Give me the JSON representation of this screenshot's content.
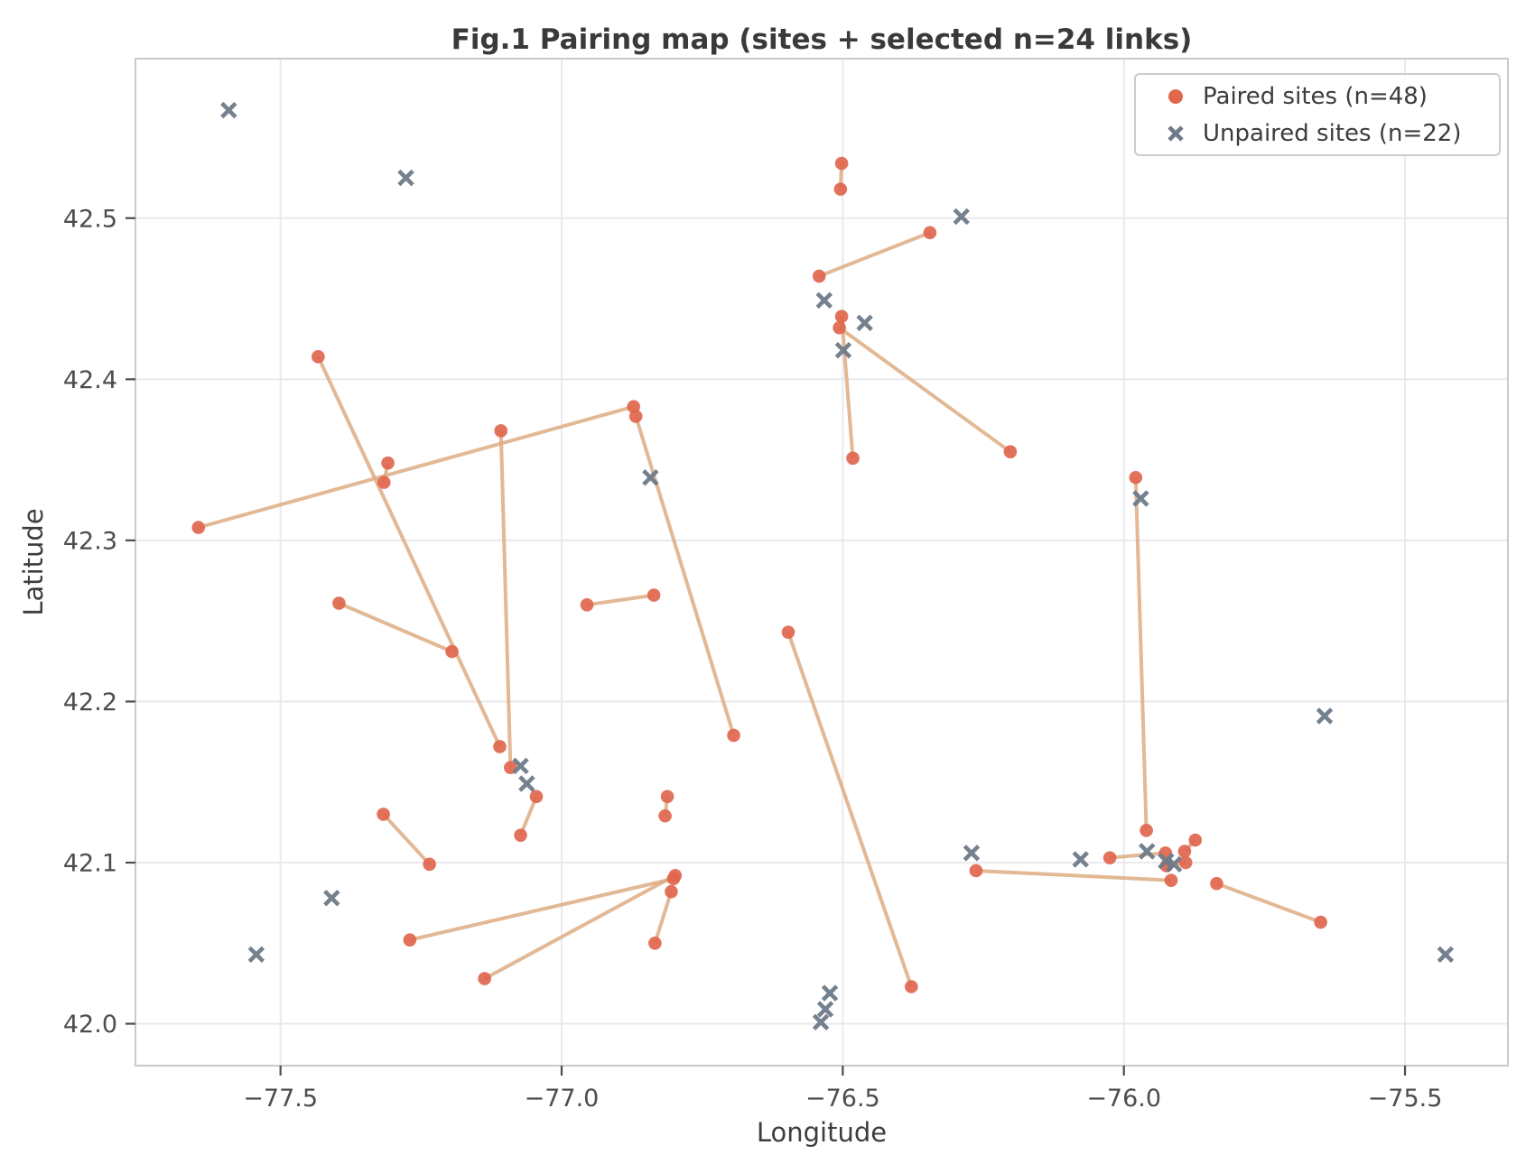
{
  "title": "Fig.1 Pairing map (sites + selected n=24 links)",
  "axes": {
    "xlabel": "Longitude",
    "ylabel": "Latitude",
    "xlim": [
      -77.758,
      -75.317
    ],
    "ylim": [
      41.974,
      42.599
    ],
    "x_ticks": [
      {
        "value": -77.5,
        "label": "−77.5"
      },
      {
        "value": -77.0,
        "label": "−77.0"
      },
      {
        "value": -76.5,
        "label": "−76.5"
      },
      {
        "value": -76.0,
        "label": "−76.0"
      },
      {
        "value": -75.5,
        "label": "−75.5"
      }
    ],
    "y_ticks": [
      {
        "value": 42.0,
        "label": "42.0"
      },
      {
        "value": 42.1,
        "label": "42.1"
      },
      {
        "value": 42.2,
        "label": "42.2"
      },
      {
        "value": 42.3,
        "label": "42.3"
      },
      {
        "value": 42.4,
        "label": "42.4"
      },
      {
        "value": 42.5,
        "label": "42.5"
      }
    ],
    "grid": true
  },
  "legend": {
    "paired_label": "Paired sites (n=48)",
    "unpaired_label": "Unpaired sites (n=22)",
    "position": "upper right"
  },
  "colors": {
    "paired": "#e0664d",
    "unpaired": "#6d7a88",
    "link": "#ddab82",
    "grid": "#e7e7ed",
    "frame": "#c9c9d0",
    "tick_text": "#4d4d4d"
  },
  "chart_data": {
    "type": "scatter",
    "title": "Fig.1 Pairing map (sites + selected n=24 links)",
    "xlabel": "Longitude",
    "ylabel": "Latitude",
    "series": [
      {
        "name": "Paired sites (n=48)",
        "marker": "circle"
      },
      {
        "name": "Unpaired sites (n=22)",
        "marker": "x"
      }
    ],
    "paired_sites": [
      [
        -76.502,
        42.534
      ],
      [
        -76.504,
        42.518
      ],
      [
        -76.345,
        42.491
      ],
      [
        -76.542,
        42.464
      ],
      [
        -76.502,
        42.439
      ],
      [
        -76.506,
        42.432
      ],
      [
        -76.482,
        42.351
      ],
      [
        -76.202,
        42.355
      ],
      [
        -77.433,
        42.414
      ],
      [
        -77.646,
        42.308
      ],
      [
        -77.309,
        42.348
      ],
      [
        -77.316,
        42.336
      ],
      [
        -77.108,
        42.368
      ],
      [
        -76.872,
        42.383
      ],
      [
        -76.868,
        42.377
      ],
      [
        -76.955,
        42.26
      ],
      [
        -76.836,
        42.266
      ],
      [
        -77.195,
        42.231
      ],
      [
        -76.694,
        42.179
      ],
      [
        -77.396,
        42.261
      ],
      [
        -77.11,
        42.172
      ],
      [
        -77.091,
        42.159
      ],
      [
        -77.045,
        42.141
      ],
      [
        -77.073,
        42.117
      ],
      [
        -76.812,
        42.141
      ],
      [
        -76.816,
        42.129
      ],
      [
        -76.798,
        42.092
      ],
      [
        -76.801,
        42.09
      ],
      [
        -76.805,
        42.082
      ],
      [
        -76.834,
        42.05
      ],
      [
        -77.137,
        42.028
      ],
      [
        -77.317,
        42.13
      ],
      [
        -77.235,
        42.099
      ],
      [
        -77.27,
        42.052
      ],
      [
        -76.597,
        42.243
      ],
      [
        -76.378,
        42.023
      ],
      [
        -75.979,
        42.339
      ],
      [
        -76.263,
        42.095
      ],
      [
        -75.96,
        42.12
      ],
      [
        -76.025,
        42.103
      ],
      [
        -75.926,
        42.106
      ],
      [
        -75.892,
        42.107
      ],
      [
        -75.873,
        42.114
      ],
      [
        -75.916,
        42.089
      ],
      [
        -75.924,
        42.098
      ],
      [
        -75.89,
        42.1
      ],
      [
        -75.835,
        42.087
      ],
      [
        -75.65,
        42.063
      ]
    ],
    "links": [
      [
        0,
        1
      ],
      [
        2,
        3
      ],
      [
        4,
        6
      ],
      [
        5,
        7
      ],
      [
        8,
        20
      ],
      [
        9,
        13
      ],
      [
        14,
        18
      ],
      [
        12,
        21
      ],
      [
        19,
        17
      ],
      [
        15,
        16
      ],
      [
        10,
        11
      ],
      [
        22,
        23
      ],
      [
        24,
        25
      ],
      [
        28,
        29
      ],
      [
        30,
        26
      ],
      [
        33,
        27
      ],
      [
        31,
        32
      ],
      [
        34,
        35
      ],
      [
        36,
        38
      ],
      [
        41,
        42
      ],
      [
        39,
        40
      ],
      [
        37,
        43
      ],
      [
        44,
        45
      ],
      [
        46,
        47
      ]
    ],
    "unpaired_sites": [
      [
        -77.592,
        42.567
      ],
      [
        -77.277,
        42.525
      ],
      [
        -76.289,
        42.501
      ],
      [
        -76.533,
        42.449
      ],
      [
        -76.461,
        42.435
      ],
      [
        -76.499,
        42.418
      ],
      [
        -76.842,
        42.339
      ],
      [
        -75.97,
        42.326
      ],
      [
        -75.643,
        42.191
      ],
      [
        -77.073,
        42.16
      ],
      [
        -77.062,
        42.149
      ],
      [
        -76.271,
        42.106
      ],
      [
        -76.077,
        42.102
      ],
      [
        -75.959,
        42.107
      ],
      [
        -75.925,
        42.101
      ],
      [
        -75.911,
        42.099
      ],
      [
        -77.409,
        42.078
      ],
      [
        -77.543,
        42.043
      ],
      [
        -75.428,
        42.043
      ],
      [
        -76.523,
        42.019
      ],
      [
        -76.531,
        42.009
      ],
      [
        -76.539,
        42.001
      ]
    ]
  }
}
